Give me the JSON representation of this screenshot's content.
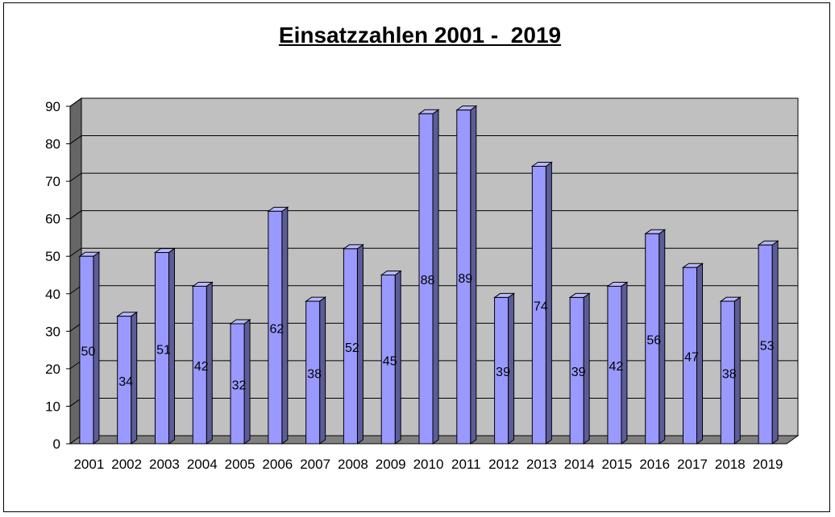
{
  "chart_data": {
    "type": "bar",
    "title": "Einsatzzahlen 2001 -  2019",
    "xlabel": "",
    "ylabel": "",
    "ylim": [
      0,
      90
    ],
    "yticks": [
      0,
      10,
      20,
      30,
      40,
      50,
      60,
      70,
      80,
      90
    ],
    "grid": true,
    "legend": "none",
    "three_d": true,
    "categories": [
      "2001",
      "2002",
      "2003",
      "2004",
      "2005",
      "2006",
      "2007",
      "2008",
      "2009",
      "2010",
      "2011",
      "2012",
      "2013",
      "2014",
      "2015",
      "2016",
      "2017",
      "2018",
      "2019"
    ],
    "values": [
      50,
      34,
      51,
      42,
      32,
      62,
      38,
      52,
      45,
      88,
      89,
      39,
      74,
      39,
      42,
      56,
      47,
      38,
      53
    ],
    "colors": {
      "bar_front": "#9999ff",
      "bar_side": "#5c5c99",
      "bar_top": "#b8b8ff",
      "wall": "#c0c0c0",
      "floor": "#808080",
      "side_wall": "#666666"
    }
  }
}
